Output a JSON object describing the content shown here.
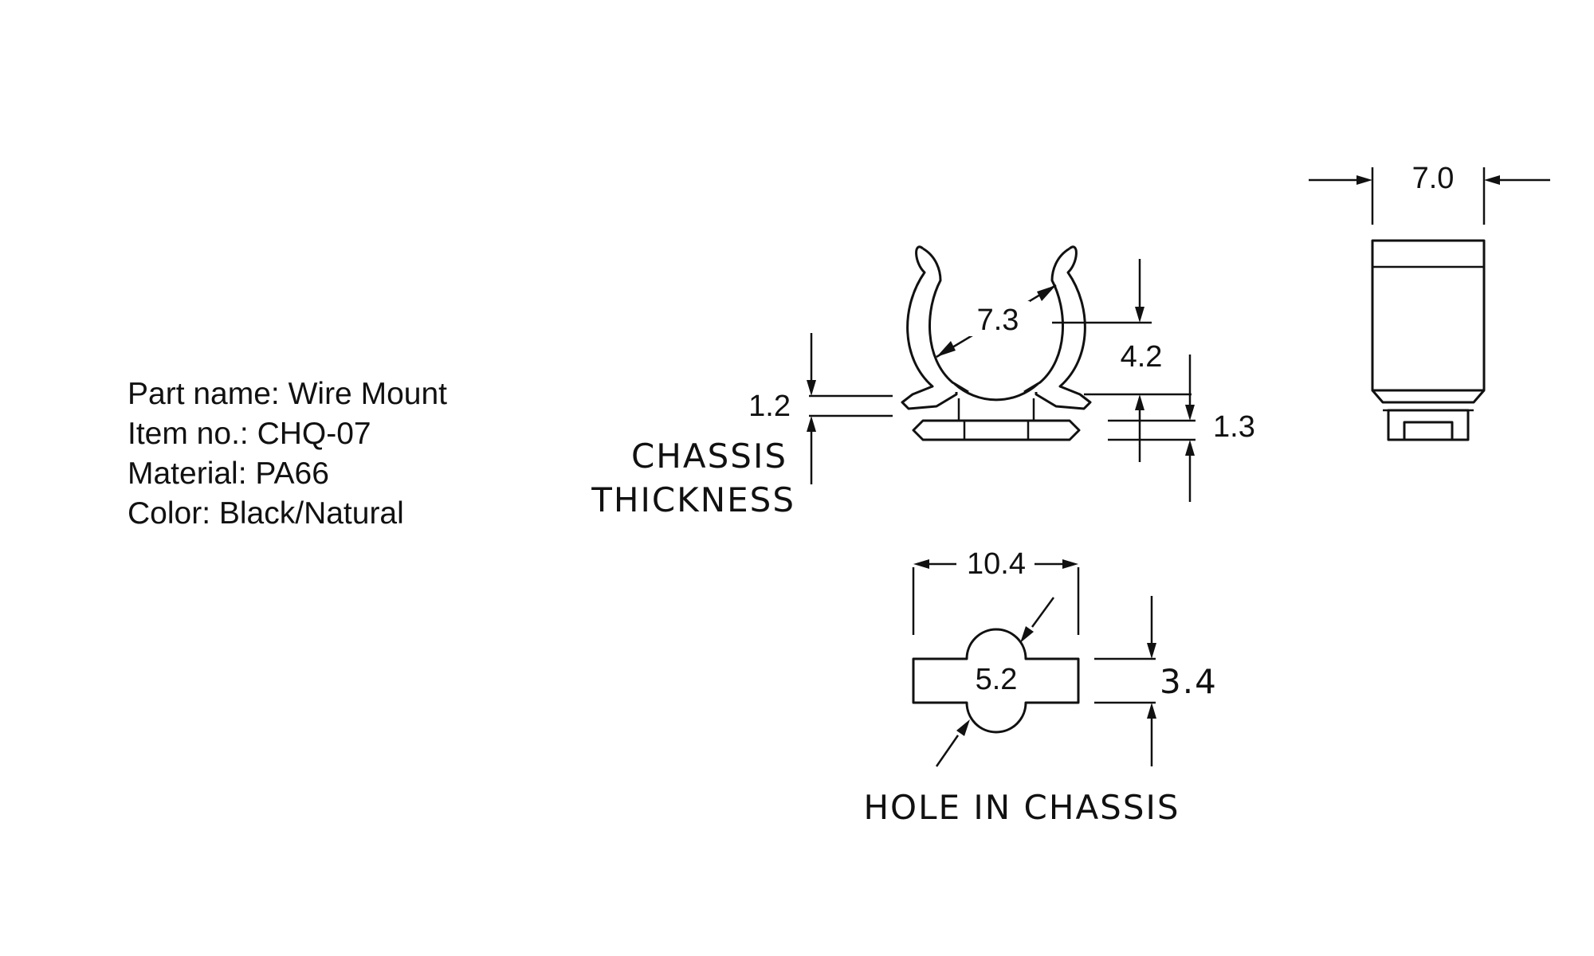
{
  "specs": {
    "part_name": "Part name: Wire Mount",
    "item_no": "Item no.: CHQ-07",
    "material": "Material: PA66",
    "color": "Color: Black/Natural"
  },
  "dimensions": {
    "width": "7.0",
    "clip_diameter": "7.3",
    "height_above": "4.2",
    "chassis_thickness": "1.2",
    "base_height": "1.3",
    "hole_length": "10.4",
    "hole_diameter": "5.2",
    "hole_width": "3.4"
  },
  "notes": {
    "chassis_line1": "CHASSIS",
    "chassis_line2": "THICKNESS",
    "hole_in_chassis": "HOLE IN CHASSIS"
  }
}
